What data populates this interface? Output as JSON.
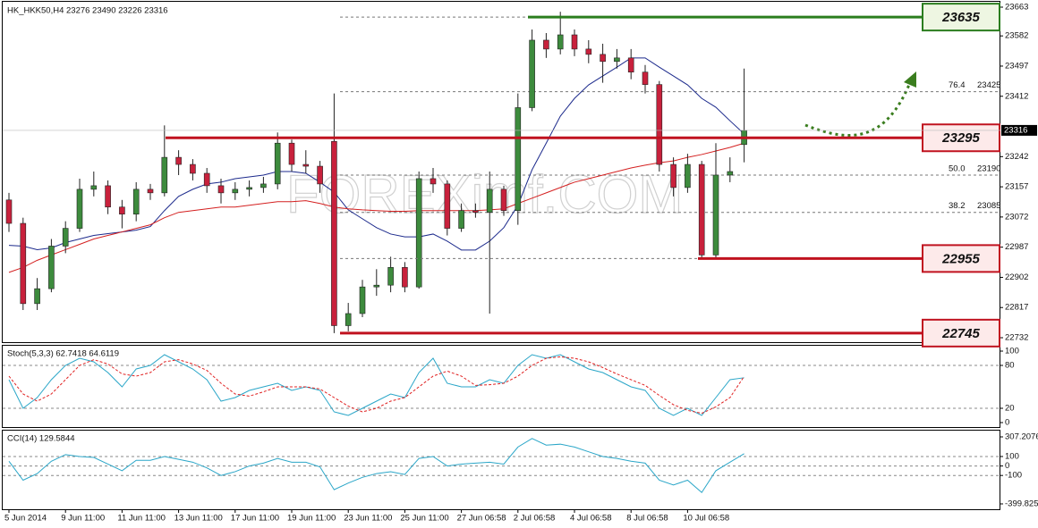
{
  "chart_data": [
    {
      "type": "candlestick",
      "title": "HK_HKK50,H4  23276 23490 23226 23316",
      "watermark": "FOREXimf.COM",
      "categories": [
        "5 Jun 2014",
        null,
        null,
        null,
        "9 Jun 11:00",
        null,
        null,
        null,
        "11 Jun 11:00",
        null,
        null,
        null,
        "13 Jun 11:00",
        null,
        null,
        null,
        "17 Jun 11:00",
        null,
        null,
        null,
        "19 Jun 11:00",
        null,
        null,
        null,
        "23 Jun 11:00",
        null,
        null,
        null,
        "25 Jun 11:00",
        null,
        null,
        null,
        "27 Jun 06:58",
        null,
        null,
        null,
        "2 Jul 06:58",
        null,
        null,
        null,
        "4 Jul 06:58",
        null,
        null,
        null,
        "8 Jul 06:58",
        null,
        null,
        null,
        "10 Jul 06:58",
        null,
        null,
        null,
        null
      ],
      "open": [
        23120,
        23054,
        22828,
        22870,
        22990,
        23040,
        23150,
        23160,
        23100,
        23080,
        23150,
        23140,
        23240,
        23220,
        23195,
        23160,
        23140,
        23150,
        23155,
        23165,
        23280,
        23220,
        23215,
        23285,
        22766,
        22800,
        22875,
        22880,
        22930,
        22875,
        23180,
        23165,
        23040,
        23090,
        23085,
        23150,
        23090,
        23380,
        23570,
        23545,
        23585,
        23545,
        23530,
        23510,
        23520,
        23480,
        23445,
        23220,
        23155,
        23220,
        22965,
        23190,
        23276
      ],
      "high": [
        23140,
        23070,
        22900,
        23010,
        23060,
        23180,
        23200,
        23175,
        23120,
        23170,
        23165,
        23330,
        23260,
        23235,
        23210,
        23180,
        23170,
        23175,
        23185,
        23310,
        23290,
        23260,
        23230,
        23420,
        22830,
        22895,
        22925,
        22960,
        22945,
        23200,
        23210,
        23175,
        23110,
        23110,
        23200,
        23160,
        23420,
        23600,
        23590,
        23650,
        23600,
        23570,
        23560,
        23545,
        23545,
        23500,
        23455,
        23240,
        23250,
        23230,
        23280,
        23240,
        23490
      ],
      "low": [
        23030,
        22810,
        22810,
        22860,
        22970,
        23030,
        23130,
        23080,
        23040,
        23060,
        23120,
        23130,
        23190,
        23175,
        23140,
        23110,
        23120,
        23130,
        23140,
        23150,
        23200,
        23195,
        23140,
        22745,
        22750,
        22790,
        22850,
        22860,
        22860,
        22870,
        23140,
        23020,
        23030,
        23070,
        22800,
        23075,
        23050,
        23370,
        23520,
        23530,
        23525,
        23505,
        23450,
        23490,
        23460,
        23420,
        23200,
        23130,
        23140,
        22955,
        22955,
        23170,
        23226
      ],
      "close": [
        23054,
        22828,
        22870,
        22990,
        23040,
        23150,
        23160,
        23100,
        23080,
        23150,
        23140,
        23240,
        23220,
        23195,
        23160,
        23140,
        23150,
        23155,
        23165,
        23280,
        23220,
        23215,
        23165,
        22766,
        22800,
        22875,
        22880,
        22930,
        22875,
        23180,
        23165,
        23040,
        23090,
        23085,
        23150,
        23090,
        23380,
        23570,
        23545,
        23585,
        23545,
        23530,
        23510,
        23520,
        23480,
        23445,
        23220,
        23155,
        23220,
        22965,
        23190,
        23200,
        23316
      ],
      "up_color": "#3d8b3d",
      "down_color": "#c8213c",
      "series": [
        {
          "color": "#1c2a8c",
          "values": [
            22992,
            22990,
            22980,
            22985,
            23000,
            23010,
            23020,
            23025,
            23030,
            23035,
            23045,
            23090,
            23130,
            23150,
            23165,
            23170,
            23180,
            23185,
            23190,
            23200,
            23200,
            23195,
            23170,
            23142,
            23092,
            23067,
            23042,
            23024,
            23016,
            23016,
            23024,
            23004,
            22979,
            22979,
            23004,
            23042,
            23105,
            23205,
            23280,
            23356,
            23406,
            23444,
            23469,
            23494,
            23520,
            23520,
            23494,
            23469,
            23444,
            23406,
            23381,
            23343,
            23306
          ]
        },
        {
          "color": "#d42020",
          "values": [
            22916,
            22930,
            22950,
            22965,
            22980,
            22995,
            23010,
            23020,
            23030,
            23040,
            23050,
            23070,
            23085,
            23090,
            23095,
            23100,
            23100,
            23105,
            23110,
            23115,
            23115,
            23118,
            23110,
            23100,
            23095,
            23092,
            23090,
            23088,
            23088,
            23090,
            23090,
            23090,
            23090,
            23090,
            23092,
            23095,
            23110,
            23125,
            23140,
            23155,
            23170,
            23180,
            23190,
            23200,
            23210,
            23218,
            23225,
            23230,
            23240,
            23248,
            23258,
            23268,
            23280
          ]
        }
      ],
      "ylim": [
        22732,
        23663
      ],
      "yticks": [
        23663,
        23582,
        23497,
        23412,
        23242,
        23157,
        23072,
        22987,
        22902,
        22817,
        22732
      ],
      "last_price": 23316,
      "levels": [
        {
          "value": 23635,
          "color": "#2a7d1e"
        },
        {
          "value": 23295,
          "color": "#c0121f"
        },
        {
          "value": 22955,
          "color": "#c0121f"
        },
        {
          "value": 22745,
          "color": "#c0121f"
        }
      ],
      "fib": [
        {
          "ratio": "76.4",
          "value": 23425
        },
        {
          "ratio": "50.0",
          "value": 23190
        },
        {
          "ratio": "38.2",
          "value": 23085
        }
      ]
    },
    {
      "type": "line",
      "title": "Stoch(5,3,3) 62.7418 64.6119",
      "series": [
        {
          "color": "#2aa6c8",
          "dashed": false,
          "values": [
            60,
            20,
            35,
            60,
            80,
            90,
            85,
            70,
            50,
            75,
            80,
            95,
            85,
            75,
            60,
            30,
            35,
            45,
            50,
            55,
            45,
            50,
            45,
            15,
            10,
            20,
            30,
            40,
            35,
            70,
            90,
            55,
            50,
            50,
            60,
            55,
            80,
            95,
            90,
            95,
            85,
            75,
            70,
            60,
            50,
            45,
            20,
            10,
            20,
            10,
            35,
            60,
            62.74
          ]
        },
        {
          "color": "#e02020",
          "dashed": true,
          "values": [
            65,
            40,
            30,
            40,
            60,
            80,
            88,
            82,
            68,
            65,
            70,
            85,
            88,
            82,
            73,
            55,
            40,
            37,
            43,
            50,
            50,
            50,
            47,
            35,
            23,
            15,
            20,
            30,
            35,
            50,
            65,
            72,
            65,
            52,
            53,
            55,
            65,
            80,
            90,
            92,
            90,
            85,
            77,
            68,
            60,
            52,
            38,
            25,
            17,
            13,
            22,
            35,
            64.61
          ]
        }
      ],
      "ylim": [
        0,
        100
      ],
      "yticks": [
        100,
        80,
        20,
        0
      ],
      "grid": true
    },
    {
      "type": "line",
      "title": "CCI(14) 129.5844",
      "series": [
        {
          "color": "#2aa6c8",
          "dashed": false,
          "values": [
            50,
            -150,
            -80,
            50,
            120,
            100,
            90,
            20,
            -50,
            60,
            60,
            100,
            70,
            40,
            -20,
            -100,
            -60,
            0,
            30,
            80,
            40,
            40,
            -10,
            -250,
            -180,
            -120,
            -80,
            -60,
            -90,
            80,
            100,
            0,
            20,
            30,
            40,
            20,
            200,
            290,
            220,
            230,
            200,
            150,
            100,
            80,
            50,
            30,
            -150,
            -200,
            -150,
            -280,
            -50,
            40,
            129.58
          ]
        }
      ],
      "ylim": [
        -399.825,
        307.2076
      ],
      "yticks": [
        307.2076,
        100,
        0,
        -100,
        -399.825
      ],
      "grid": true
    }
  ]
}
